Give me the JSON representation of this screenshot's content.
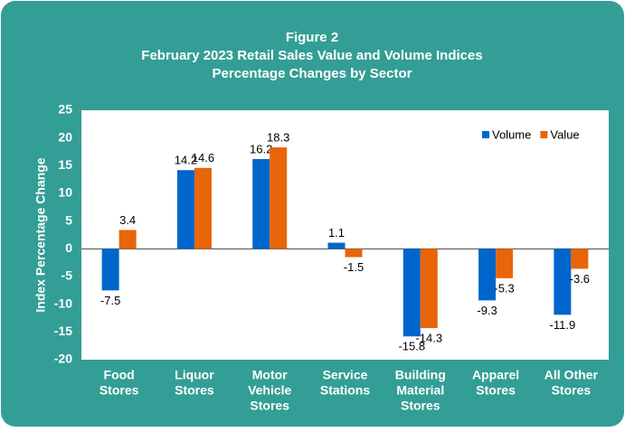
{
  "chart_data": {
    "type": "bar",
    "title": [
      "Figure 2",
      "February 2023 Retail Sales Value and Volume Indices",
      "Percentage Changes by Sector"
    ],
    "y_label": "Index Percentage Change",
    "categories": [
      [
        "Food",
        "Stores"
      ],
      [
        "Liquor",
        "Stores"
      ],
      [
        "Motor",
        "Vehicle",
        "Stores"
      ],
      [
        "Service",
        "Stations"
      ],
      [
        "Building",
        "Material",
        "Stores"
      ],
      [
        "Apparel",
        "Stores"
      ],
      [
        "All Other",
        "Stores"
      ]
    ],
    "series": [
      {
        "name": "Volume",
        "color": "#0066cc",
        "values": [
          -7.5,
          14.2,
          16.2,
          1.1,
          -15.8,
          -9.3,
          -11.9
        ]
      },
      {
        "name": "Value",
        "color": "#e8650a",
        "values": [
          3.4,
          14.6,
          18.3,
          -1.5,
          -14.3,
          -5.3,
          -3.6
        ]
      }
    ],
    "ylim": [
      -20,
      25
    ],
    "yticks": [
      25,
      20,
      15,
      10,
      5,
      0,
      -5,
      -10,
      -15,
      -20
    ],
    "legend": "top-right"
  }
}
